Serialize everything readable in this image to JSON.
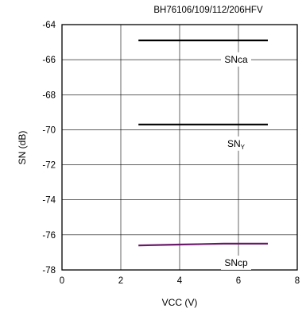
{
  "chart_data": {
    "type": "line",
    "title": "BH76106/109/112/206HFV",
    "xlabel": "VCC (V)",
    "ylabel": "SN (dB)",
    "xlim": [
      0,
      8
    ],
    "ylim": [
      -78,
      -64
    ],
    "xticks": [
      "0",
      "2",
      "4",
      "6",
      "8"
    ],
    "yticks": [
      "-64",
      "-66",
      "-68",
      "-70",
      "-72",
      "-74",
      "-76",
      "-78"
    ],
    "grid": true,
    "series": [
      {
        "name": "SNca",
        "color": "#000000",
        "x": [
          2.6,
          7.0
        ],
        "y": [
          -64.9,
          -64.9
        ]
      },
      {
        "name": "SN",
        "subscript": "Y",
        "color": "#000000",
        "x": [
          2.6,
          7.0
        ],
        "y": [
          -69.7,
          -69.7
        ]
      },
      {
        "name": "SNcp",
        "color": "#6a1a6a",
        "x": [
          2.6,
          4.0,
          5.5,
          7.0
        ],
        "y": [
          -76.6,
          -76.55,
          -76.5,
          -76.5
        ]
      }
    ]
  }
}
